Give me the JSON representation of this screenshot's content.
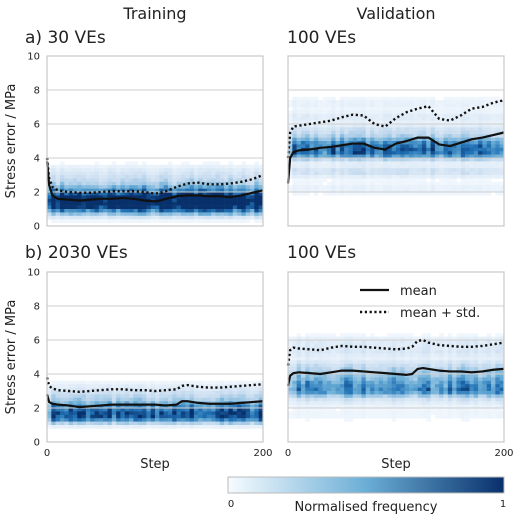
{
  "column_titles": [
    "Training",
    "Validation"
  ],
  "chart_data": [
    {
      "type": "line",
      "panel": "top-left",
      "title": "a) 30 VEs",
      "ylabel": "Stress error / MPa",
      "xlabel": "",
      "xlim": [
        0,
        200
      ],
      "ylim": [
        0,
        10
      ],
      "yticks": [
        0,
        2,
        4,
        6,
        8,
        10
      ],
      "xticks": [],
      "grid": true,
      "x": [
        0,
        2,
        5,
        10,
        20,
        30,
        40,
        50,
        60,
        70,
        80,
        90,
        100,
        105,
        110,
        120,
        130,
        140,
        150,
        160,
        170,
        180,
        190,
        200
      ],
      "series": [
        {
          "name": "mean",
          "style": "solid",
          "values": [
            3.8,
            2.4,
            1.8,
            1.6,
            1.55,
            1.5,
            1.55,
            1.6,
            1.6,
            1.65,
            1.6,
            1.5,
            1.45,
            1.5,
            1.6,
            1.75,
            1.8,
            1.8,
            1.75,
            1.75,
            1.7,
            1.8,
            1.95,
            2.1
          ]
        },
        {
          "name": "mean + std.",
          "style": "dotted",
          "values": [
            4.0,
            2.8,
            2.3,
            2.1,
            2.0,
            1.95,
            1.95,
            2.0,
            2.05,
            2.05,
            2.05,
            2.0,
            1.9,
            1.95,
            2.05,
            2.3,
            2.5,
            2.55,
            2.45,
            2.45,
            2.5,
            2.6,
            2.75,
            3.0
          ]
        }
      ]
    },
    {
      "type": "line",
      "panel": "top-right",
      "title": "100 VEs",
      "ylabel": "",
      "xlabel": "",
      "xlim": [
        0,
        200
      ],
      "ylim": [
        0,
        10
      ],
      "yticks": [],
      "xticks": [],
      "grid": true,
      "x": [
        0,
        2,
        5,
        10,
        20,
        30,
        40,
        50,
        60,
        70,
        80,
        90,
        100,
        110,
        120,
        130,
        140,
        150,
        160,
        170,
        180,
        190,
        200
      ],
      "series": [
        {
          "name": "mean",
          "style": "solid",
          "values": [
            2.5,
            4.0,
            4.35,
            4.45,
            4.5,
            4.6,
            4.65,
            4.75,
            4.85,
            4.85,
            4.6,
            4.5,
            4.85,
            5.0,
            5.2,
            5.2,
            4.8,
            4.7,
            4.9,
            5.1,
            5.2,
            5.35,
            5.5
          ]
        },
        {
          "name": "mean + std.",
          "style": "dotted",
          "values": [
            4.0,
            5.5,
            5.85,
            5.9,
            6.0,
            6.1,
            6.2,
            6.4,
            6.55,
            6.5,
            6.0,
            5.85,
            6.35,
            6.7,
            6.9,
            7.05,
            6.3,
            6.2,
            6.5,
            6.9,
            7.0,
            7.25,
            7.4
          ]
        }
      ]
    },
    {
      "type": "line",
      "panel": "bottom-left",
      "title": "b) 2030 VEs",
      "ylabel": "Stress error / MPa",
      "xlabel": "Step",
      "xlim": [
        0,
        200
      ],
      "ylim": [
        0,
        10
      ],
      "yticks": [
        0,
        2,
        4,
        6,
        8,
        10
      ],
      "xticks": [
        0,
        200
      ],
      "grid": true,
      "x": [
        0,
        2,
        5,
        10,
        20,
        30,
        40,
        50,
        60,
        70,
        80,
        90,
        100,
        110,
        120,
        125,
        130,
        135,
        140,
        150,
        160,
        170,
        180,
        190,
        200
      ],
      "series": [
        {
          "name": "mean",
          "style": "solid",
          "values": [
            2.8,
            2.35,
            2.25,
            2.2,
            2.15,
            2.05,
            2.1,
            2.15,
            2.2,
            2.2,
            2.2,
            2.2,
            2.2,
            2.15,
            2.2,
            2.4,
            2.4,
            2.35,
            2.3,
            2.25,
            2.25,
            2.25,
            2.3,
            2.35,
            2.4
          ]
        },
        {
          "name": "mean + std.",
          "style": "dotted",
          "values": [
            3.8,
            3.3,
            3.15,
            3.05,
            3.0,
            2.95,
            3.0,
            3.05,
            3.1,
            3.1,
            3.05,
            3.05,
            3.0,
            3.05,
            3.1,
            3.3,
            3.35,
            3.3,
            3.25,
            3.2,
            3.2,
            3.25,
            3.3,
            3.35,
            3.4
          ]
        }
      ]
    },
    {
      "type": "line",
      "panel": "bottom-right",
      "title": "100 VEs",
      "ylabel": "",
      "xlabel": "Step",
      "xlim": [
        0,
        200
      ],
      "ylim": [
        0,
        10
      ],
      "yticks": [],
      "xticks": [
        0,
        200
      ],
      "grid": true,
      "x": [
        0,
        2,
        5,
        10,
        20,
        30,
        40,
        50,
        60,
        70,
        80,
        90,
        100,
        110,
        115,
        120,
        125,
        130,
        140,
        150,
        160,
        170,
        180,
        190,
        200
      ],
      "series": [
        {
          "name": "mean",
          "style": "solid",
          "values": [
            3.3,
            3.9,
            4.05,
            4.1,
            4.05,
            4.0,
            4.1,
            4.2,
            4.2,
            4.15,
            4.1,
            4.05,
            4.0,
            3.95,
            4.0,
            4.3,
            4.35,
            4.3,
            4.2,
            4.15,
            4.15,
            4.1,
            4.15,
            4.25,
            4.3
          ]
        },
        {
          "name": "mean + std.",
          "style": "dotted",
          "values": [
            4.5,
            5.4,
            5.55,
            5.5,
            5.45,
            5.4,
            5.55,
            5.65,
            5.6,
            5.6,
            5.55,
            5.5,
            5.45,
            5.5,
            5.6,
            5.95,
            6.0,
            5.85,
            5.7,
            5.65,
            5.6,
            5.6,
            5.65,
            5.75,
            5.85
          ]
        }
      ]
    }
  ],
  "legend": {
    "placement": "top-right of bottom-right panel",
    "items": [
      {
        "label": "mean",
        "style": "solid"
      },
      {
        "label": "mean + std.",
        "style": "dotted"
      }
    ]
  },
  "colorbar": {
    "label": "Normalised frequency",
    "min_label": "0",
    "max_label": "1",
    "color_low": "#f7fbff",
    "color_high": "#08306b"
  },
  "heatmaps": [
    {
      "bands": [
        [
          1.2,
          0.85
        ],
        [
          1.6,
          0.7
        ],
        [
          1.9,
          0.45
        ],
        [
          2.3,
          0.3
        ],
        [
          2.8,
          0.18
        ],
        [
          3.3,
          0.1
        ],
        [
          0.8,
          0.3
        ]
      ]
    },
    {
      "bands": [
        [
          4.2,
          0.55
        ],
        [
          4.6,
          0.5
        ],
        [
          5.0,
          0.4
        ],
        [
          3.2,
          0.2
        ],
        [
          5.6,
          0.2
        ],
        [
          6.4,
          0.12
        ],
        [
          7.2,
          0.08
        ],
        [
          2.2,
          0.08
        ]
      ]
    },
    {
      "bands": [
        [
          1.4,
          0.6
        ],
        [
          1.8,
          0.55
        ],
        [
          2.2,
          0.35
        ],
        [
          2.7,
          0.2
        ],
        [
          3.2,
          0.1
        ]
      ]
    },
    {
      "bands": [
        [
          3.0,
          0.6
        ],
        [
          3.5,
          0.45
        ],
        [
          4.0,
          0.3
        ],
        [
          4.5,
          0.2
        ],
        [
          5.3,
          0.15
        ],
        [
          5.9,
          0.12
        ],
        [
          2.4,
          0.12
        ],
        [
          1.6,
          0.05
        ]
      ]
    }
  ]
}
